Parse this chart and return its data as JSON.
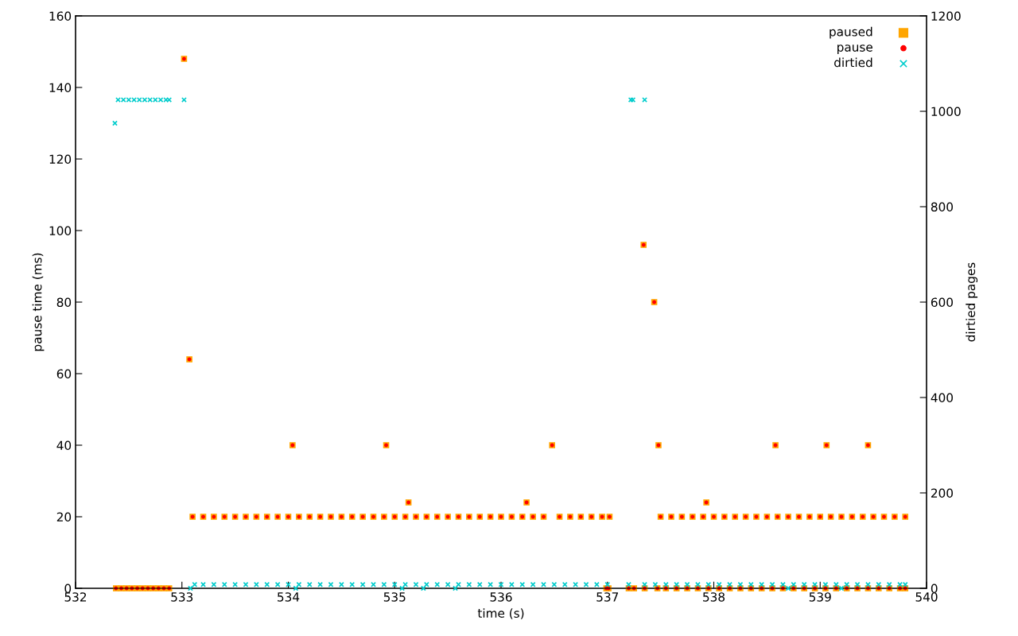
{
  "chart_data": {
    "type": "scatter",
    "xlabel": "time (s)",
    "ylabel": "pause time (ms)",
    "y2label": "dirtied pages",
    "xlim": [
      532,
      540
    ],
    "xticks": [
      532,
      533,
      534,
      535,
      536,
      537,
      538,
      539,
      540
    ],
    "ylim": [
      0,
      160
    ],
    "yticks": [
      0,
      20,
      40,
      60,
      80,
      100,
      120,
      140,
      160
    ],
    "y2lim": [
      0,
      1200
    ],
    "y2ticks": [
      0,
      200,
      400,
      600,
      800,
      1000,
      1200
    ],
    "grid": false,
    "legend": "top right",
    "series": [
      {
        "name": "paused",
        "color": "#ffa500",
        "marker": "square",
        "x": [
          532.38,
          532.43,
          532.48,
          532.53,
          532.58,
          532.63,
          532.68,
          532.73,
          532.78,
          532.83,
          532.88,
          533.02,
          533.07,
          533.1,
          533.2,
          533.3,
          533.4,
          533.5,
          533.6,
          533.7,
          533.8,
          533.9,
          534.0,
          534.04,
          534.1,
          534.2,
          534.3,
          534.4,
          534.5,
          534.6,
          534.7,
          534.8,
          534.9,
          534.92,
          535.0,
          535.1,
          535.13,
          535.2,
          535.3,
          535.4,
          535.5,
          535.6,
          535.7,
          535.8,
          535.9,
          536.0,
          536.1,
          536.2,
          536.24,
          536.3,
          536.4,
          536.48,
          536.55,
          536.65,
          536.75,
          536.85,
          536.95,
          537.02,
          536.99,
          537.01,
          537.2,
          537.25,
          537.35,
          537.34,
          537.44,
          537.48,
          537.5,
          537.6,
          537.7,
          537.8,
          537.9,
          537.93,
          538.0,
          538.1,
          538.2,
          538.3,
          538.4,
          538.5,
          538.58,
          538.6,
          538.7,
          538.8,
          538.9,
          539.0,
          539.06,
          539.1,
          539.2,
          539.3,
          539.4,
          539.45,
          539.5,
          539.6,
          539.7,
          539.8,
          537.47,
          537.55,
          537.65,
          537.75,
          537.85,
          537.95,
          538.05,
          538.15,
          538.25,
          538.35,
          538.45,
          538.55,
          538.65,
          538.75,
          538.85,
          538.95,
          539.05,
          539.15,
          539.25,
          539.35,
          539.45,
          539.55,
          539.65,
          539.75,
          539.8
        ],
        "values": [
          0,
          0,
          0,
          0,
          0,
          0,
          0,
          0,
          0,
          0,
          0,
          148,
          64,
          20,
          20,
          20,
          20,
          20,
          20,
          20,
          20,
          20,
          20,
          40,
          20,
          20,
          20,
          20,
          20,
          20,
          20,
          20,
          20,
          40,
          20,
          20,
          24,
          20,
          20,
          20,
          20,
          20,
          20,
          20,
          20,
          20,
          20,
          20,
          24,
          20,
          20,
          40,
          20,
          20,
          20,
          20,
          20,
          20,
          0,
          0,
          0,
          0,
          0,
          96,
          80,
          40,
          20,
          20,
          20,
          20,
          20,
          24,
          20,
          20,
          20,
          20,
          20,
          20,
          40,
          20,
          20,
          20,
          20,
          20,
          40,
          20,
          20,
          20,
          20,
          40,
          20,
          20,
          20,
          20,
          0,
          0,
          0,
          0,
          0,
          0,
          0,
          0,
          0,
          0,
          0,
          0,
          0,
          0,
          0,
          0,
          0,
          0,
          0,
          0,
          0,
          0,
          0,
          0,
          0
        ]
      },
      {
        "name": "pause",
        "color": "#ff0000",
        "marker": "circle",
        "x": [
          532.38,
          532.43,
          532.48,
          532.53,
          532.58,
          532.63,
          532.68,
          532.73,
          532.78,
          532.83,
          532.88,
          533.02,
          533.07,
          533.1,
          533.2,
          533.3,
          533.4,
          533.5,
          533.6,
          533.7,
          533.8,
          533.9,
          534.0,
          534.04,
          534.1,
          534.2,
          534.3,
          534.4,
          534.5,
          534.6,
          534.7,
          534.8,
          534.9,
          534.92,
          535.0,
          535.1,
          535.13,
          535.2,
          535.3,
          535.4,
          535.5,
          535.6,
          535.7,
          535.8,
          535.9,
          536.0,
          536.1,
          536.2,
          536.24,
          536.3,
          536.4,
          536.48,
          536.55,
          536.65,
          536.75,
          536.85,
          536.95,
          537.02,
          536.99,
          537.01,
          537.2,
          537.25,
          537.35,
          537.34,
          537.44,
          537.48,
          537.5,
          537.6,
          537.7,
          537.8,
          537.9,
          537.93,
          538.0,
          538.1,
          538.2,
          538.3,
          538.4,
          538.5,
          538.58,
          538.6,
          538.7,
          538.8,
          538.9,
          539.0,
          539.06,
          539.1,
          539.2,
          539.3,
          539.4,
          539.45,
          539.5,
          539.6,
          539.7,
          539.8,
          537.47,
          537.55,
          537.65,
          537.75,
          537.85,
          537.95,
          538.05,
          538.15,
          538.25,
          538.35,
          538.45,
          538.55,
          538.65,
          538.75,
          538.85,
          538.95,
          539.05,
          539.15,
          539.25,
          539.35,
          539.45,
          539.55,
          539.65,
          539.75,
          539.8
        ],
        "values": [
          0,
          0,
          0,
          0,
          0,
          0,
          0,
          0,
          0,
          0,
          0,
          148,
          64,
          20,
          20,
          20,
          20,
          20,
          20,
          20,
          20,
          20,
          20,
          40,
          20,
          20,
          20,
          20,
          20,
          20,
          20,
          20,
          20,
          40,
          20,
          20,
          24,
          20,
          20,
          20,
          20,
          20,
          20,
          20,
          20,
          20,
          20,
          20,
          24,
          20,
          20,
          40,
          20,
          20,
          20,
          20,
          20,
          20,
          0,
          0,
          0,
          0,
          0,
          96,
          80,
          40,
          20,
          20,
          20,
          20,
          20,
          24,
          20,
          20,
          20,
          20,
          20,
          20,
          40,
          20,
          20,
          20,
          20,
          20,
          40,
          20,
          20,
          20,
          20,
          40,
          20,
          20,
          20,
          20,
          0,
          0,
          0,
          0,
          0,
          0,
          0,
          0,
          0,
          0,
          0,
          0,
          0,
          0,
          0,
          0,
          0,
          0,
          0,
          0,
          0,
          0,
          0,
          0,
          0
        ]
      },
      {
        "name": "dirtied",
        "color": "#00cccc",
        "marker": "cross",
        "axis": "y2",
        "x": [
          532.37,
          532.4,
          532.45,
          532.5,
          532.55,
          532.6,
          532.65,
          532.7,
          532.75,
          532.8,
          532.85,
          532.88,
          533.02,
          533.08,
          533.12,
          533.2,
          533.3,
          533.4,
          533.5,
          533.6,
          533.7,
          533.8,
          533.9,
          534.0,
          534.07,
          534.1,
          534.2,
          534.3,
          534.4,
          534.5,
          534.6,
          534.7,
          534.8,
          534.9,
          535.0,
          535.07,
          535.1,
          535.2,
          535.27,
          535.3,
          535.4,
          535.5,
          535.57,
          535.6,
          535.7,
          535.8,
          535.9,
          536.0,
          536.1,
          536.2,
          536.3,
          536.4,
          536.5,
          536.6,
          536.7,
          536.8,
          536.9,
          537.0,
          537.22,
          537.24,
          537.35,
          537.2,
          537.35,
          537.45,
          537.55,
          537.65,
          537.75,
          537.85,
          537.95,
          538.05,
          538.15,
          538.25,
          538.35,
          538.45,
          538.55,
          538.65,
          538.7,
          538.75,
          538.85,
          538.95,
          539.05,
          539.15,
          539.2,
          539.25,
          539.35,
          539.45,
          539.55,
          539.65,
          539.75,
          539.8
        ],
        "values": [
          975,
          1024,
          1024,
          1024,
          1024,
          1024,
          1024,
          1024,
          1024,
          1024,
          1024,
          1024,
          1024,
          0,
          8,
          8,
          8,
          8,
          8,
          8,
          8,
          8,
          8,
          8,
          0,
          8,
          8,
          8,
          8,
          8,
          8,
          8,
          8,
          8,
          8,
          0,
          8,
          8,
          0,
          8,
          8,
          8,
          0,
          8,
          8,
          8,
          8,
          8,
          8,
          8,
          8,
          8,
          8,
          8,
          8,
          8,
          8,
          8,
          1024,
          1024,
          1024,
          8,
          8,
          8,
          8,
          8,
          8,
          8,
          8,
          8,
          8,
          8,
          8,
          8,
          8,
          8,
          0,
          8,
          8,
          8,
          8,
          8,
          0,
          8,
          8,
          8,
          8,
          8,
          8,
          8
        ]
      }
    ]
  }
}
